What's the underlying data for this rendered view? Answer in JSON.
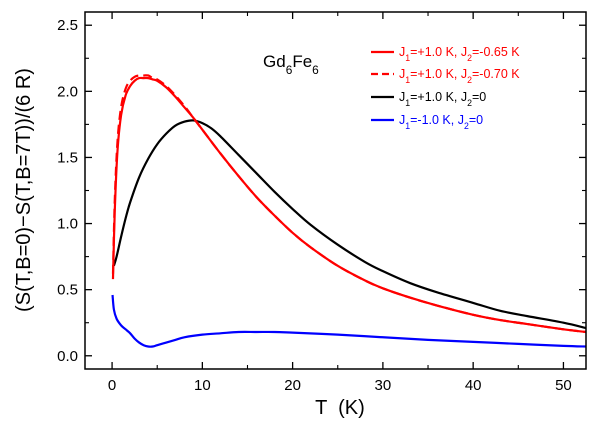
{
  "chart_data": {
    "type": "line",
    "title": "Gd6Fe6",
    "title_parts": [
      {
        "text": "Gd",
        "sub": false
      },
      {
        "text": "6",
        "sub": true
      },
      {
        "text": "Fe",
        "sub": false
      },
      {
        "text": "6",
        "sub": true
      }
    ],
    "xlabel": "T  (K)",
    "ylabel": "(S(T,B=0)−S(T,B=7T))/(6 R)",
    "xlim": [
      -3,
      52.5
    ],
    "ylim": [
      -0.1,
      2.6
    ],
    "xticks": [
      "0",
      "10",
      "20",
      "30",
      "40",
      "50"
    ],
    "yticks": [
      "0.0",
      "0.5",
      "1.0",
      "1.5",
      "2.0",
      "2.5"
    ],
    "legend_position": "top-right",
    "series": [
      {
        "name": "J1=+1.0 K, J2=-0.65 K",
        "label_parts": [
          {
            "text": "J",
            "sub": false
          },
          {
            "text": "1",
            "sub": true
          },
          {
            "text": "=+1.0  K,  J",
            "sub": false
          },
          {
            "text": "2",
            "sub": true
          },
          {
            "text": "=-0.65  K",
            "sub": false
          }
        ],
        "color": "#ff0000",
        "dash": "solid",
        "x": [
          0.1,
          0.3,
          0.6,
          1.0,
          1.5,
          2.0,
          2.5,
          3.0,
          3.5,
          4.0,
          4.5,
          5,
          6,
          7,
          8,
          9,
          10,
          12,
          14,
          16,
          18,
          20,
          22,
          25,
          28,
          30,
          33,
          36,
          40,
          43,
          46,
          50,
          52.5
        ],
        "y": [
          0.58,
          1.1,
          1.55,
          1.82,
          1.97,
          2.04,
          2.08,
          2.1,
          2.1,
          2.1,
          2.09,
          2.08,
          2.03,
          1.96,
          1.88,
          1.8,
          1.71,
          1.53,
          1.36,
          1.2,
          1.06,
          0.93,
          0.82,
          0.68,
          0.57,
          0.51,
          0.44,
          0.38,
          0.31,
          0.27,
          0.24,
          0.2,
          0.18
        ]
      },
      {
        "name": "J1=+1.0 K, J2=-0.70 K",
        "label_parts": [
          {
            "text": "J",
            "sub": false
          },
          {
            "text": "1",
            "sub": true
          },
          {
            "text": "=+1.0  K,  J",
            "sub": false
          },
          {
            "text": "2",
            "sub": true
          },
          {
            "text": "=-0.70  K",
            "sub": false
          }
        ],
        "color": "#ff0000",
        "dash": "dashed",
        "x": [
          0.1,
          0.3,
          0.6,
          1.0,
          1.5,
          2.0,
          2.5,
          3.0,
          3.5,
          4.0,
          4.5,
          5,
          6,
          7,
          8,
          9,
          10,
          12,
          14,
          16,
          18,
          20,
          22,
          25,
          28,
          30,
          33,
          36,
          40,
          43,
          46,
          50,
          52.5
        ],
        "y": [
          0.62,
          1.18,
          1.62,
          1.88,
          2.02,
          2.08,
          2.11,
          2.12,
          2.12,
          2.12,
          2.1,
          2.09,
          2.04,
          1.97,
          1.89,
          1.8,
          1.71,
          1.53,
          1.36,
          1.2,
          1.06,
          0.93,
          0.82,
          0.68,
          0.57,
          0.51,
          0.44,
          0.38,
          0.31,
          0.27,
          0.24,
          0.2,
          0.18
        ]
      },
      {
        "name": "J1=+1.0 K, J2=0",
        "label_parts": [
          {
            "text": "J",
            "sub": false
          },
          {
            "text": "1",
            "sub": true
          },
          {
            "text": "=+1.0  K,  J",
            "sub": false
          },
          {
            "text": "2",
            "sub": true
          },
          {
            "text": "=0",
            "sub": false
          }
        ],
        "color": "#000000",
        "dash": "solid",
        "x": [
          0.2,
          0.5,
          1.0,
          1.5,
          2.0,
          3.0,
          4.0,
          5.0,
          6.0,
          7.0,
          8.0,
          9.0,
          10,
          11,
          12,
          14,
          16,
          18,
          20,
          22,
          25,
          28,
          30,
          33,
          36,
          40,
          43,
          46,
          50,
          52.5
        ],
        "y": [
          0.68,
          0.75,
          0.9,
          1.04,
          1.16,
          1.35,
          1.49,
          1.6,
          1.68,
          1.74,
          1.77,
          1.78,
          1.76,
          1.72,
          1.66,
          1.52,
          1.38,
          1.24,
          1.11,
          0.99,
          0.84,
          0.71,
          0.64,
          0.55,
          0.48,
          0.4,
          0.34,
          0.3,
          0.25,
          0.21
        ]
      },
      {
        "name": "J1=-1.0 K, J2=0",
        "label_parts": [
          {
            "text": "J",
            "sub": false
          },
          {
            "text": "1",
            "sub": true
          },
          {
            "text": "=-1.0  K,  J",
            "sub": false
          },
          {
            "text": "2",
            "sub": true
          },
          {
            "text": "=0",
            "sub": false
          }
        ],
        "color": "#0000ff",
        "dash": "solid",
        "x": [
          0.05,
          0.2,
          0.5,
          1.0,
          1.5,
          2.0,
          2.5,
          3.0,
          3.5,
          4.0,
          4.5,
          5,
          6,
          7,
          8,
          10,
          12,
          14,
          16,
          18,
          20,
          25,
          30,
          35,
          40,
          45,
          50,
          52.5
        ],
        "y": [
          0.46,
          0.35,
          0.28,
          0.23,
          0.2,
          0.17,
          0.13,
          0.1,
          0.08,
          0.07,
          0.07,
          0.08,
          0.1,
          0.12,
          0.14,
          0.16,
          0.17,
          0.18,
          0.18,
          0.18,
          0.175,
          0.16,
          0.14,
          0.12,
          0.105,
          0.09,
          0.075,
          0.07
        ]
      }
    ]
  }
}
